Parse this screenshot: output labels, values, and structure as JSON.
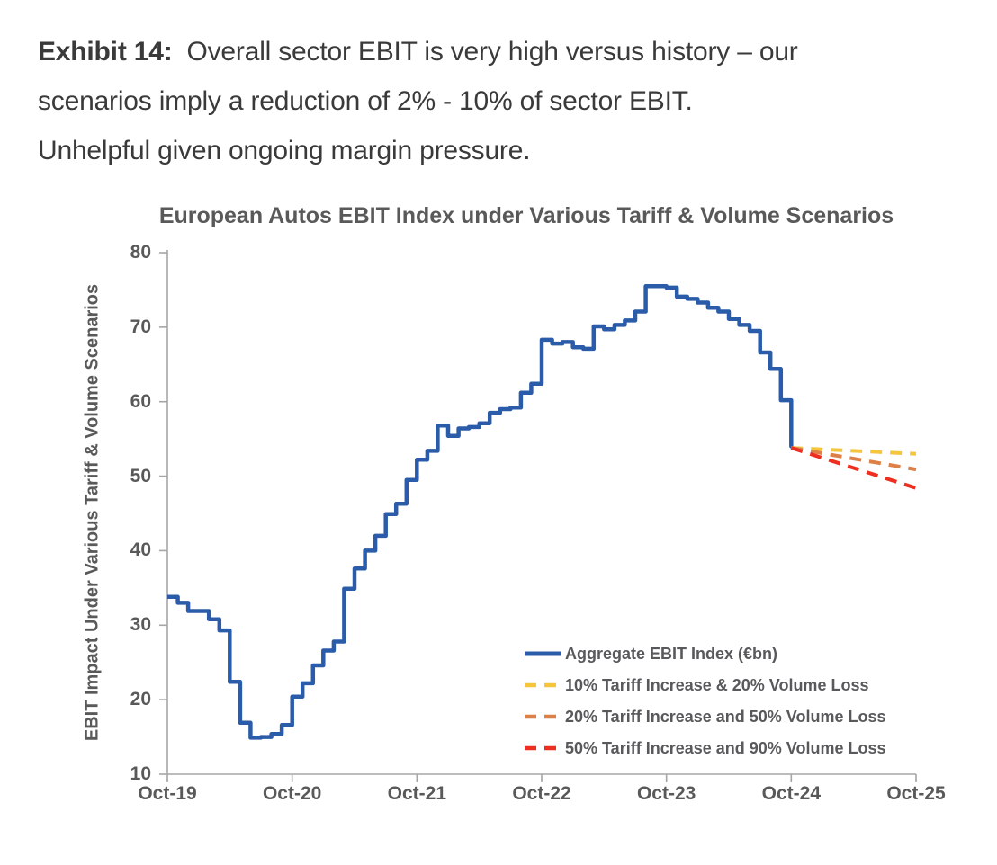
{
  "caption": {
    "exhibit_label": "Exhibit 14:",
    "lines": [
      "Overall sector EBIT is very high versus history – our",
      "scenarios imply a reduction of 2% - 10% of sector EBIT.",
      "Unhelpful given ongoing margin pressure."
    ]
  },
  "chart_data": {
    "type": "line",
    "subtype": "monthly-step-with-scenario-fan",
    "title": "European Autos EBIT Index under Various Tariff & Volume Scenarios",
    "ylabel": "EBIT Impact Under Various Tariff & Volume Scenarios",
    "xlabel": "",
    "ylim": [
      10,
      80
    ],
    "y_ticks": [
      80,
      70,
      60,
      50,
      40,
      30,
      20,
      10
    ],
    "x_tick_labels": [
      "Oct-19",
      "Oct-20",
      "Oct-21",
      "Oct-22",
      "Oct-23",
      "Oct-24",
      "Oct-25"
    ],
    "x_axis_months_total": 72,
    "grid": false,
    "legend_position": "inside-lower-right",
    "axis_color": "#a6a6a6",
    "text_color": "#595959",
    "series": [
      {
        "name": "Aggregate EBIT Index (€bn)",
        "type": "step",
        "style": "solid",
        "color": "#2b5ca9",
        "start_month": 0,
        "months": "Oct-19 through Oct-24, one value per month",
        "monthly_values": [
          33.8,
          33.0,
          31.9,
          31.9,
          30.8,
          29.3,
          22.4,
          16.9,
          14.9,
          15.0,
          15.4,
          16.6,
          20.4,
          22.2,
          24.6,
          26.6,
          27.8,
          34.9,
          37.6,
          40.0,
          42.0,
          44.9,
          46.3,
          49.5,
          52.2,
          53.4,
          56.8,
          55.4,
          56.4,
          56.6,
          57.1,
          58.5,
          59.0,
          59.2,
          61.2,
          62.4,
          68.3,
          67.8,
          68.0,
          67.3,
          67.1,
          70.1,
          69.7,
          70.3,
          70.9,
          72.1,
          75.5,
          75.5,
          75.3,
          74.1,
          73.8,
          73.3,
          72.6,
          72.1,
          71.1,
          70.3,
          69.5,
          66.6,
          64.4,
          60.2,
          54.0
        ]
      },
      {
        "name": "10% Tariff Increase & 20% Volume Loss",
        "type": "linear",
        "style": "dashed",
        "color": "#f5c53c",
        "x_months": [
          60,
          72
        ],
        "values": [
          53.8,
          53.0
        ]
      },
      {
        "name": "20% Tariff Increase and 50% Volume Loss",
        "type": "linear",
        "style": "dashed",
        "color": "#dd8047",
        "x_months": [
          60,
          72
        ],
        "values": [
          53.8,
          50.9
        ]
      },
      {
        "name": "50% Tariff Increase and 90% Volume Loss",
        "type": "linear",
        "style": "dashed",
        "color": "#ee2e1e",
        "x_months": [
          60,
          72
        ],
        "values": [
          53.8,
          48.4
        ]
      }
    ]
  }
}
